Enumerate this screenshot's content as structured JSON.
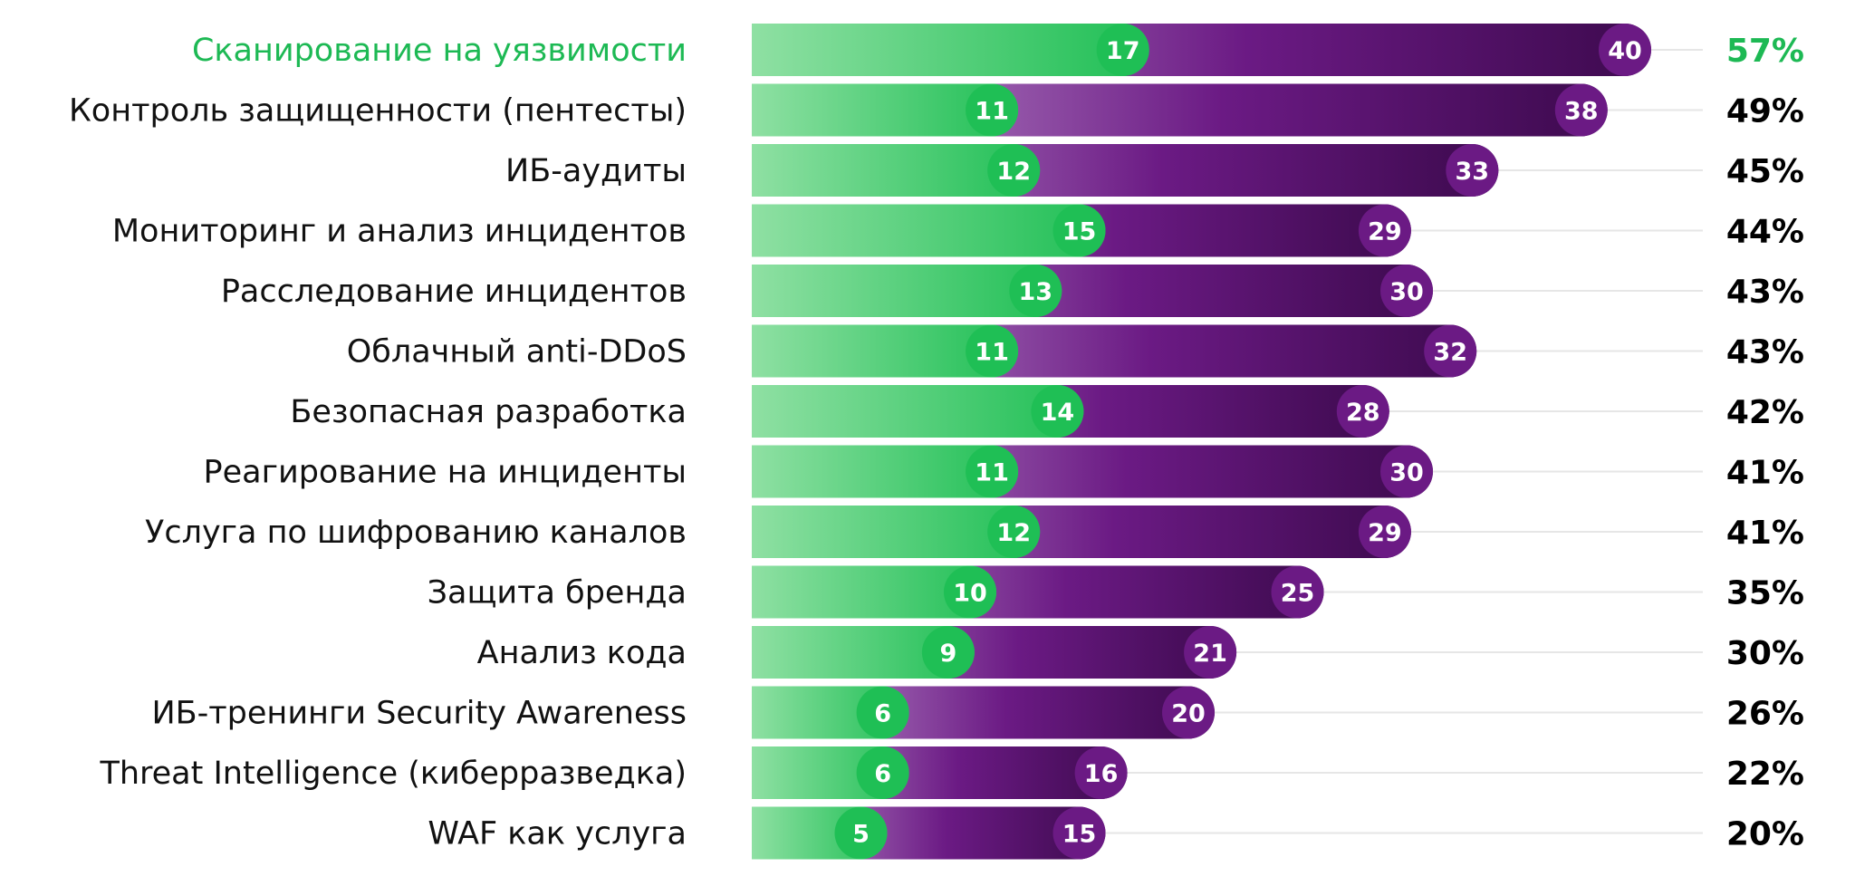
{
  "chart_data": {
    "type": "bar",
    "title": "",
    "xlabel": "",
    "ylabel": "",
    "highlight_index": 0,
    "colors": {
      "green_light": "#8fe0a3",
      "green": "#1fbf55",
      "purple_light": "#c39bd3",
      "purple": "#6b1a84",
      "purple_dark": "#3d0a4e",
      "highlight_text": "#1db954",
      "text": "#111111",
      "gridline": "#e6e6e6"
    },
    "categories": [
      "Сканирование на уязвимости",
      "Контроль защищенности (пентесты)",
      "ИБ-аудиты",
      "Мониторинг и анализ инцидентов",
      "Расследование инцидентов",
      "Облачный anti-DDoS",
      "Безопасная разработка",
      "Реагирование на инциденты",
      "Услуга по шифрованию каналов",
      "Защита бренда",
      "Анализ кода",
      "ИБ-тренинги Security Awareness",
      "Threat Intelligence (киберразведка)",
      "WAF как услуга"
    ],
    "series": [
      {
        "values": [
          17,
          11,
          12,
          15,
          13,
          11,
          14,
          11,
          12,
          10,
          9,
          6,
          6,
          5
        ]
      },
      {
        "values": [
          40,
          38,
          33,
          29,
          30,
          32,
          28,
          30,
          29,
          25,
          21,
          20,
          16,
          15
        ]
      }
    ],
    "totals": [
      "57%",
      "49%",
      "45%",
      "44%",
      "43%",
      "43%",
      "42%",
      "41%",
      "41%",
      "35%",
      "30%",
      "26%",
      "22%",
      "20%"
    ]
  }
}
